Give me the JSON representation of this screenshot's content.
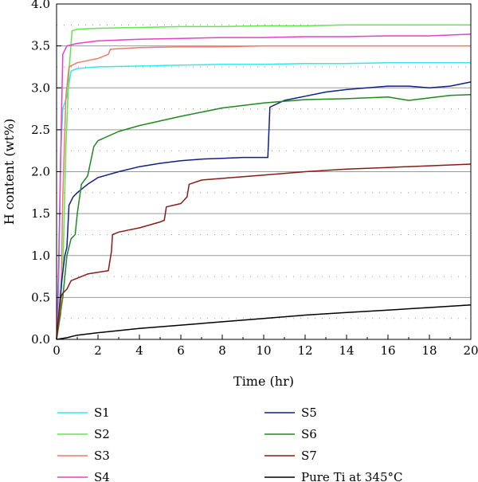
{
  "chart_data": {
    "type": "line",
    "xlabel": "Time (hr)",
    "ylabel": "H content (wt%)",
    "xlim": [
      0,
      20
    ],
    "ylim": [
      0,
      4.0
    ],
    "xticks": [
      "0",
      "2",
      "4",
      "6",
      "8",
      "10",
      "12",
      "14",
      "16",
      "18",
      "20"
    ],
    "yticks": [
      "0.0",
      "0.5",
      "1.0",
      "1.5",
      "2.0",
      "2.5",
      "3.0",
      "3.5",
      "4.0"
    ],
    "grid": "horizontal solid at major ticks, dotted at minor ticks",
    "legend_placement": "below plot, two columns",
    "series": [
      {
        "name": "S1",
        "color": "#33e8e8",
        "x": [
          0,
          0.1,
          0.2,
          0.3,
          0.5,
          0.7,
          1,
          2,
          4,
          6,
          8,
          10,
          12,
          14,
          16,
          18,
          20
        ],
        "y": [
          0,
          0.5,
          2.2,
          2.75,
          2.9,
          3.2,
          3.23,
          3.25,
          3.26,
          3.27,
          3.28,
          3.28,
          3.29,
          3.29,
          3.3,
          3.3,
          3.3
        ]
      },
      {
        "name": "S2",
        "color": "#5ee84a",
        "x": [
          0,
          0.3,
          0.45,
          0.6,
          0.75,
          1,
          2,
          4,
          6,
          8,
          10,
          12,
          14,
          16,
          18,
          20
        ],
        "y": [
          0,
          0.8,
          2.3,
          3.2,
          3.68,
          3.7,
          3.71,
          3.72,
          3.73,
          3.73,
          3.74,
          3.74,
          3.75,
          3.75,
          3.75,
          3.75
        ]
      },
      {
        "name": "S3",
        "color": "#f07a68",
        "x": [
          0,
          0.2,
          0.3,
          0.45,
          0.6,
          1,
          2,
          2.5,
          2.6,
          4,
          6,
          8,
          10,
          12,
          14,
          16,
          18,
          20
        ],
        "y": [
          0,
          0.3,
          1.7,
          2.9,
          3.25,
          3.3,
          3.35,
          3.4,
          3.46,
          3.48,
          3.49,
          3.49,
          3.5,
          3.5,
          3.5,
          3.5,
          3.5,
          3.5
        ]
      },
      {
        "name": "S4",
        "color": "#e640c8",
        "x": [
          0,
          0.1,
          0.2,
          0.3,
          0.5,
          1,
          2,
          4,
          6,
          8,
          10,
          12,
          14,
          16,
          18,
          20
        ],
        "y": [
          0,
          0.9,
          2.2,
          3.4,
          3.5,
          3.53,
          3.56,
          3.58,
          3.59,
          3.6,
          3.6,
          3.61,
          3.61,
          3.62,
          3.62,
          3.64
        ]
      },
      {
        "name": "S5",
        "color": "#10208a",
        "x": [
          0,
          0.25,
          0.4,
          0.5,
          0.6,
          0.8,
          1,
          1.5,
          2,
          3,
          4,
          5,
          6,
          7,
          8,
          9,
          10,
          10.2,
          10.3,
          11,
          12,
          13,
          14,
          15,
          16,
          17,
          18,
          19,
          20
        ],
        "y": [
          0,
          0.7,
          1.0,
          1.1,
          1.6,
          1.7,
          1.75,
          1.85,
          1.93,
          2.0,
          2.06,
          2.1,
          2.13,
          2.15,
          2.16,
          2.17,
          2.17,
          2.17,
          2.77,
          2.85,
          2.9,
          2.95,
          2.98,
          3.0,
          3.02,
          3.02,
          3.0,
          3.02,
          3.07
        ]
      },
      {
        "name": "S6",
        "color": "#1e8a1e",
        "x": [
          0,
          0.3,
          0.5,
          0.7,
          0.9,
          1.0,
          1.2,
          1.5,
          1.8,
          2.0,
          3,
          4,
          6,
          8,
          10,
          11,
          12,
          14,
          16,
          17,
          18,
          19,
          20
        ],
        "y": [
          0,
          0.5,
          1.0,
          1.2,
          1.25,
          1.5,
          1.85,
          1.95,
          2.3,
          2.37,
          2.48,
          2.55,
          2.66,
          2.76,
          2.82,
          2.84,
          2.86,
          2.87,
          2.89,
          2.85,
          2.88,
          2.91,
          2.92
        ]
      },
      {
        "name": "S7",
        "color": "#8c1a14",
        "x": [
          0,
          0.2,
          0.3,
          0.5,
          0.7,
          1.0,
          1.5,
          2.0,
          2.5,
          2.65,
          2.7,
          3,
          4,
          5,
          5.2,
          5.3,
          6,
          6.3,
          6.4,
          7,
          8,
          10,
          12,
          14,
          16,
          18,
          20
        ],
        "y": [
          0,
          0.5,
          0.55,
          0.6,
          0.7,
          0.73,
          0.78,
          0.8,
          0.82,
          1.05,
          1.25,
          1.28,
          1.33,
          1.4,
          1.42,
          1.58,
          1.62,
          1.7,
          1.85,
          1.9,
          1.92,
          1.96,
          2.0,
          2.03,
          2.05,
          2.07,
          2.09
        ]
      },
      {
        "name": "Pure Ti at 345°C",
        "color": "#000000",
        "x": [
          0,
          0.5,
          1,
          2,
          4,
          6,
          8,
          10,
          12,
          14,
          16,
          18,
          20
        ],
        "y": [
          0,
          0.02,
          0.05,
          0.08,
          0.13,
          0.17,
          0.21,
          0.25,
          0.29,
          0.32,
          0.35,
          0.38,
          0.41
        ]
      }
    ]
  }
}
